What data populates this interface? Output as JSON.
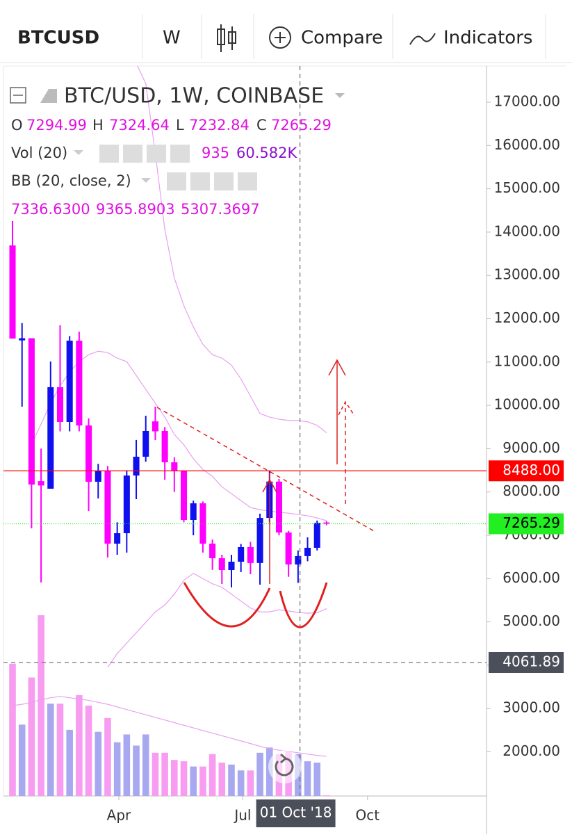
{
  "toolbar": {
    "symbol": "BTCUSD",
    "interval": "W",
    "compare": "Compare",
    "indicators": "Indicators"
  },
  "chart_data": {
    "type": "candlestick",
    "title": "BTC/USD, 1W, COINBASE",
    "ohlc_labels": [
      "O",
      "H",
      "L",
      "C"
    ],
    "indicator_titles": [
      "Vol (20)",
      "BB (20, close, 2)"
    ],
    "volume_ma_label": "60.582K",
    "bb_labels": [
      "7336.6300",
      "9365.8903",
      "5307.3697"
    ],
    "up_color": "#1010ee",
    "down_color": "#ff00ff",
    "volume_up_color": "#a8a8f0",
    "volume_down_color": "#f79cf0",
    "band_color": "#e8a0f0",
    "x": [
      0,
      1,
      2,
      3,
      4,
      5,
      6,
      7,
      8,
      9,
      10,
      11,
      12,
      13,
      14,
      15,
      16,
      17,
      18,
      19,
      20,
      21,
      22,
      23,
      24,
      25,
      26,
      27,
      28,
      29,
      30,
      31,
      32,
      33
    ],
    "open": [
      13693,
      11500,
      11550,
      8250,
      8075,
      10419,
      9616,
      11494,
      9536,
      8236,
      8490,
      6807,
      7048,
      8380,
      8814,
      9630,
      9408,
      8685,
      8490,
      7353,
      7738,
      6807,
      6470,
      6197,
      6390,
      6727,
      6360,
      7400,
      8240,
      7064,
      6326,
      6519,
      6711,
      7294.99
    ],
    "high": [
      14255,
      11900,
      11550,
      9000,
      11013,
      11850,
      11600,
      11700,
      9700,
      8650,
      8600,
      7300,
      8500,
      9200,
      9760,
      9970,
      9500,
      8800,
      8500,
      7800,
      7780,
      6900,
      6550,
      6550,
      6800,
      6850,
      7500,
      8493,
      8300,
      7100,
      6650,
      6952,
      7340,
      7324.64
    ],
    "low": [
      11543,
      9970,
      7160,
      5910,
      8075,
      9400,
      9400,
      9400,
      7560,
      7850,
      6486,
      6550,
      6600,
      7835,
      8700,
      9200,
      8284,
      8000,
      7300,
      7000,
      6600,
      6200,
      5876,
      5796,
      6150,
      6100,
      5860,
      7300,
      7000,
      6040,
      5900,
      6400,
      6650,
      7232.84
    ],
    "close": [
      11543,
      11550,
      8172,
      8150,
      10419,
      9616,
      11494,
      9536,
      8236,
      8490,
      6807,
      7048,
      8380,
      8814,
      9408,
      9400,
      8685,
      8490,
      7353,
      7738,
      6807,
      6470,
      6197,
      6390,
      6727,
      6360,
      7400,
      8240,
      7064,
      6326,
      6519,
      6711,
      7289,
      7265.29
    ],
    "volume": [
      202000,
      109000,
      181000,
      276000,
      141000,
      141000,
      101000,
      154000,
      138000,
      98000,
      119000,
      82000,
      94000,
      77000,
      94000,
      66000,
      66000,
      55000,
      53000,
      45000,
      45000,
      64000,
      51000,
      48000,
      39000,
      39000,
      66000,
      74000,
      64000,
      69000,
      64000,
      53000,
      51000,
      935
    ],
    "volume_ma": [
      138000,
      140000,
      143000,
      147000,
      150000,
      152000,
      150000,
      148000,
      146000,
      143000,
      140000,
      136000,
      132000,
      128000,
      124000,
      120000,
      116000,
      112000,
      108000,
      104000,
      100000,
      96000,
      92000,
      88000,
      84000,
      80000,
      76000,
      72000,
      70000,
      68000,
      66000,
      64000,
      62000,
      60582
    ],
    "bb_upper": [
      null,
      null,
      null,
      null,
      null,
      null,
      null,
      null,
      null,
      null,
      17900,
      17900,
      17900,
      17900,
      17430,
      15830,
      14060,
      12940,
      12300,
      11810,
      11410,
      11170,
      11090,
      10930,
      10610,
      10210,
      9810,
      9730,
      9680,
      9650,
      9650,
      9620,
      9540,
      9365.8903
    ],
    "bb_middle": [
      null,
      null,
      9090,
      9570,
      10050,
      10450,
      10770,
      11010,
      11170,
      11250,
      11220,
      11090,
      11010,
      10690,
      10370,
      10050,
      9730,
      9330,
      9090,
      8770,
      8520,
      8360,
      8120,
      7960,
      7800,
      7640,
      7590,
      7560,
      7530,
      7510,
      7480,
      7450,
      7400,
      7336.63
    ],
    "bb_lower": [
      null,
      null,
      null,
      null,
      null,
      null,
      null,
      null,
      null,
      null,
      3950,
      4270,
      4510,
      4750,
      4990,
      5230,
      5390,
      5640,
      5960,
      6120,
      6000,
      5880,
      5800,
      5640,
      5480,
      5320,
      5230,
      5230,
      5280,
      5250,
      5220,
      5200,
      5210,
      5307.3697
    ],
    "xlim": [
      -0.95,
      49.8
    ],
    "ylim": [
      980,
      17835
    ],
    "xticks": [
      {
        "value": 11.17,
        "label": "Apr"
      },
      {
        "value": 24.2,
        "label": "Jul"
      },
      {
        "value": 37.3,
        "label": "Oct"
      }
    ],
    "yticks": [
      {
        "value": 17000,
        "label": "17000.00"
      },
      {
        "value": 16000,
        "label": "16000.00"
      },
      {
        "value": 15000,
        "label": "15000.00"
      },
      {
        "value": 14000,
        "label": "14000.00"
      },
      {
        "value": 13000,
        "label": "13000.00"
      },
      {
        "value": 12000,
        "label": "12000.00"
      },
      {
        "value": 11000,
        "label": "11000.00"
      },
      {
        "value": 10000,
        "label": "10000.00"
      },
      {
        "value": 9000,
        "label": "9000.00"
      },
      {
        "value": 8000,
        "label": "8000.00"
      },
      {
        "value": 7000,
        "label": "7000.00"
      },
      {
        "value": 6000,
        "label": "6000.00"
      },
      {
        "value": 5000,
        "label": "5000.00"
      },
      {
        "value": 4000,
        "label": "4000.00"
      },
      {
        "value": 3000,
        "label": "3000.00"
      },
      {
        "value": 2000,
        "label": "2000.00"
      }
    ],
    "grid": false,
    "price_lines": [
      {
        "value": 8488,
        "label": "8488.00",
        "color": "#ff0000",
        "text_color": "#ffffff",
        "style": "solid"
      },
      {
        "value": 7265.29,
        "color": "#22ee22",
        "text_color": "#000000",
        "style": "dotted"
      }
    ],
    "crosshair": {
      "x": 30.2,
      "y": 4061.89,
      "x_label": "01 Oct '18",
      "color": "#4a4f5a"
    }
  }
}
